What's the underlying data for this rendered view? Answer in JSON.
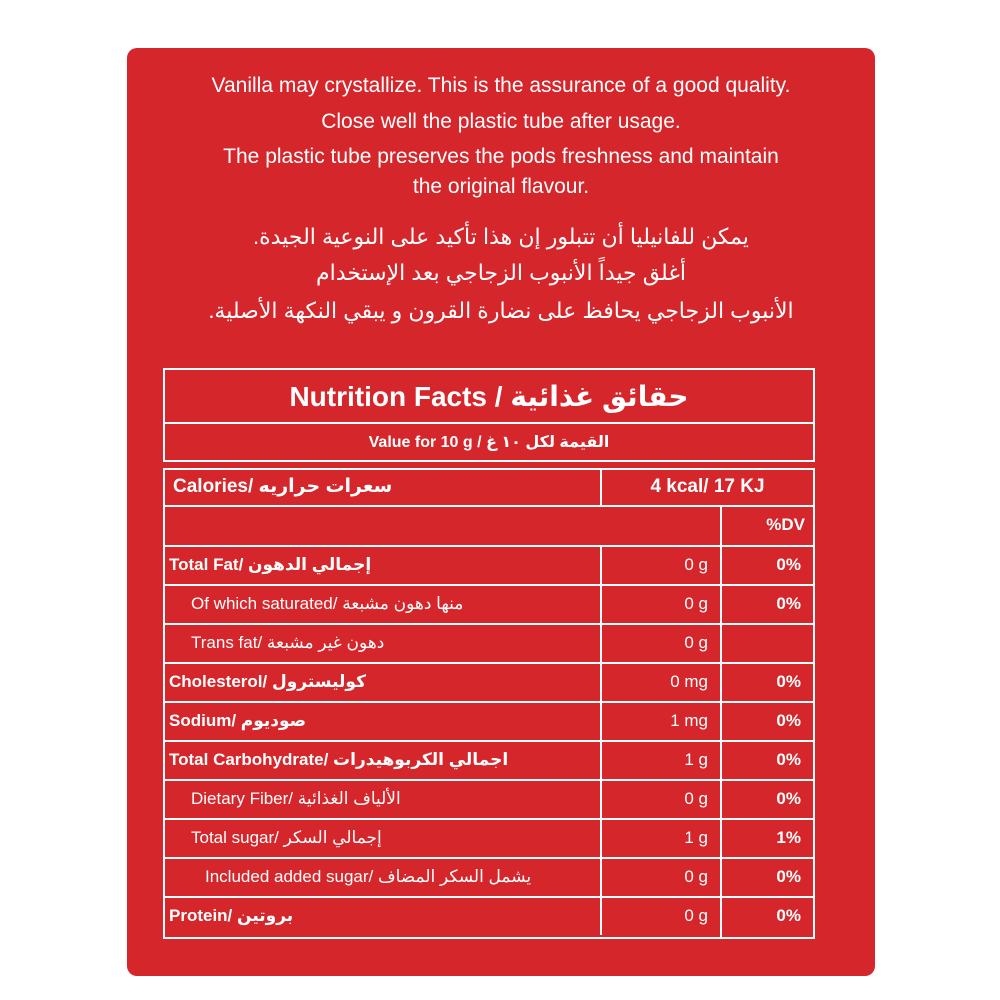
{
  "notes": {
    "english": [
      "Vanilla may crystallize. This is the assurance of a good quality.",
      "Close well the plastic tube after usage.",
      "The plastic tube preserves the pods freshness and maintain",
      "the original flavour."
    ],
    "arabic": [
      "يمكن للفانيليا أن تتبلور إن هذا تأكيد على النوعية الجيدة.",
      "أغلق جيداً الأنبوب الزجاجي بعد الإستخدام",
      "الأنبوب الزجاجي يحافظ على نضارة القرون و يبقي النكهة الأصلية."
    ]
  },
  "table": {
    "title": "Nutrition Facts / حقائق غذائية",
    "serving": "Value for 10 g / القيمة لكل ١٠ غ",
    "calories_label": "Calories/ سعرات حراريه",
    "calories_value": "4 kcal/ 17 KJ",
    "dv_header": "%DV",
    "rows": [
      {
        "label": "Total Fat/ إجمالي الدهون",
        "amount": "0 g",
        "dv": "0%"
      },
      {
        "label": "Of which saturated/ منها دهون مشبعة",
        "amount": "0 g",
        "dv": "0%"
      },
      {
        "label": "Trans fat/ دهون غير مشبعة",
        "amount": "0 g"
      },
      {
        "label": "Cholesterol/ كوليسترول",
        "amount": "0 mg",
        "dv": "0%"
      },
      {
        "label": "Sodium/ صوديوم",
        "amount": "1 mg",
        "dv": "0%"
      },
      {
        "label": "Total Carbohydrate/ اجمالي الكربوهيدرات",
        "amount": "1 g",
        "dv": "0%"
      },
      {
        "label": "Dietary Fiber/ الألياف الغذائية",
        "amount": "0 g",
        "dv": "0%"
      },
      {
        "label": "Total sugar/ إجمالي السكر",
        "amount": "1 g",
        "dv": "1%"
      },
      {
        "label": "Included added sugar/ يشمل السكر المضاف",
        "amount": "0 g",
        "dv": "0%"
      },
      {
        "label": "Protein/ بروتين",
        "amount": "0 g",
        "dv": "0%"
      }
    ]
  }
}
